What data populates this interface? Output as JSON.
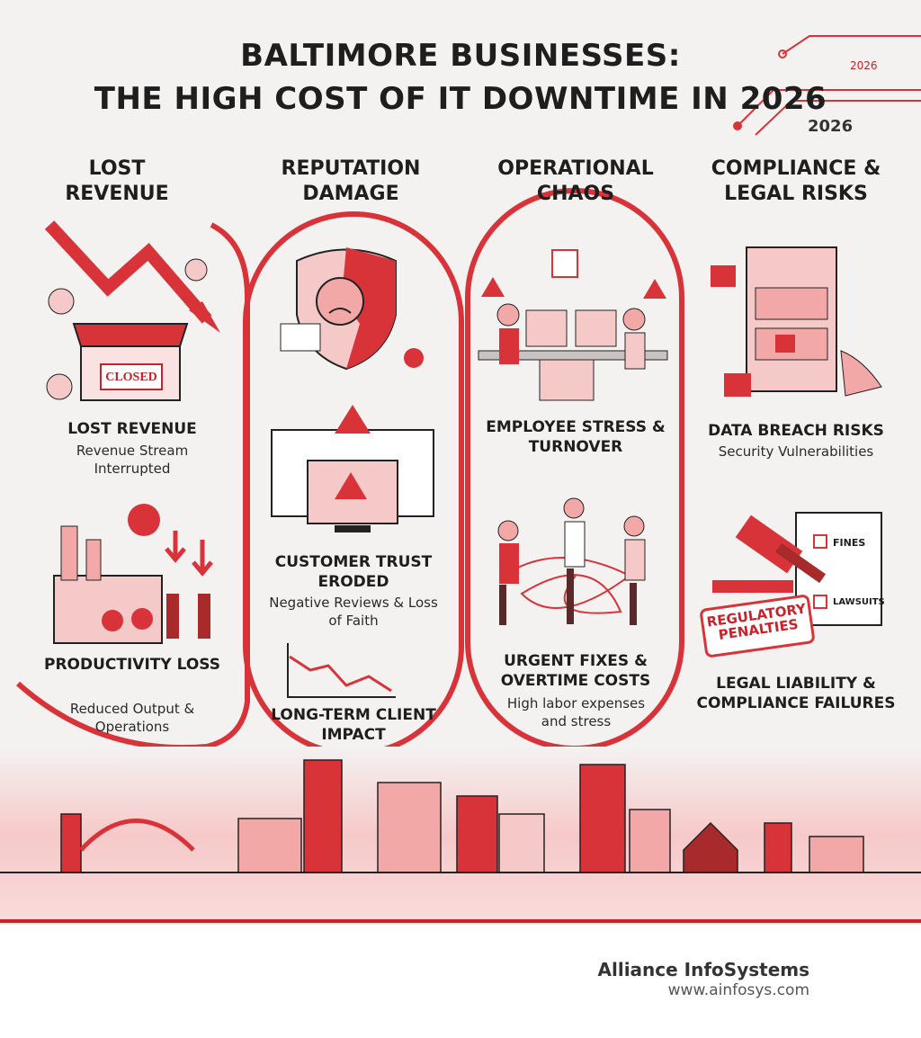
{
  "header": {
    "title_lines": [
      "BALTIMORE BUSINESSES:",
      "THE HIGH COST OF IT DOWNTIME IN 2026"
    ],
    "badge": "2026",
    "year": "2026"
  },
  "columns": [
    {
      "heading": "LOST REVENUE",
      "items": [
        {
          "title": "LOST REVENUE",
          "subtitle": "Revenue Stream Interrupted"
        },
        {
          "title": "PRODUCTIVITY LOSS",
          "subtitle": "Reduced Output & Operations"
        }
      ]
    },
    {
      "heading": "REPUTATION DAMAGE",
      "items": [
        {
          "title": "CUSTOMER TRUST ERODED",
          "subtitle": "Negative Reviews & Loss of Faith"
        },
        {
          "title": "LONG-TERM CLIENT IMPACT"
        }
      ]
    },
    {
      "heading": "OPERATIONAL CHAOS",
      "items": [
        {
          "title": "EMPLOYEE STRESS & TURNOVER"
        },
        {
          "title": "URGENT FIXES & OVERTIME COSTS",
          "subtitle": "High labor expenses and stress"
        }
      ]
    },
    {
      "heading": "COMPLIANCE & LEGAL RISKS",
      "items": [
        {
          "title": "DATA BREACH RISKS",
          "subtitle": "Security Vulnerabilities"
        },
        {
          "title": "LEGAL LIABILITY & COMPLIANCE FAILURES"
        }
      ]
    }
  ],
  "illustration_labels": {
    "closed": "CLOSED",
    "fines": "FINES",
    "lawsuits": "LAWSUITS",
    "penalties": "REGULATORY PENALTIES"
  },
  "footer": {
    "company": "Alliance InfoSystems",
    "url": "www.ainfosys.com"
  }
}
